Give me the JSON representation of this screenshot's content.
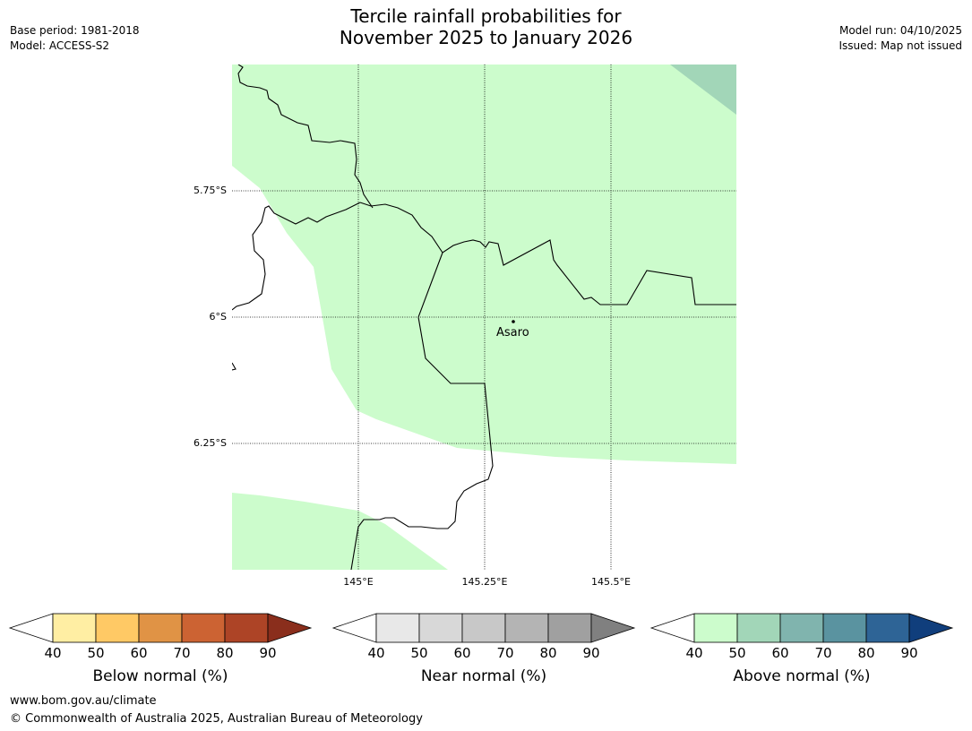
{
  "title": {
    "line1": "Tercile rainfall probabilities for",
    "line2": "November 2025 to January 2026"
  },
  "meta": {
    "base_period": "Base period: 1981-2018",
    "model": "Model: ACCESS-S2",
    "model_run": "Model run: 04/10/2025",
    "issued": "Issued: Map not issued"
  },
  "map": {
    "lat_labels": [
      "5.75°S",
      "6°S",
      "6.25°S"
    ],
    "lon_labels": [
      "145°E",
      "145.25°E",
      "145.5°E"
    ],
    "place": {
      "name": "Asaro",
      "icon": "dot-icon"
    },
    "colors": {
      "above_40_50": "#ccfccc",
      "above_50_60": "#a2d6b8",
      "border": "#000000"
    }
  },
  "colorbars": [
    {
      "label": "Below normal (%)",
      "ticks": [
        "40",
        "50",
        "60",
        "70",
        "80",
        "90"
      ],
      "colors": [
        "#ffeea3",
        "#ffc965",
        "#e09345",
        "#cc6333",
        "#ad4426",
        "#8a2e1c"
      ]
    },
    {
      "label": "Near normal (%)",
      "ticks": [
        "40",
        "50",
        "60",
        "70",
        "80",
        "90"
      ],
      "colors": [
        "#e8e8e8",
        "#d8d8d8",
        "#c8c8c8",
        "#b4b4b4",
        "#a0a0a0",
        "#808080"
      ]
    },
    {
      "label": "Above normal (%)",
      "ticks": [
        "40",
        "50",
        "60",
        "70",
        "80",
        "90"
      ],
      "colors": [
        "#ccfccc",
        "#a2d6b8",
        "#80b4ae",
        "#5a93a0",
        "#2e6496",
        "#103e7c"
      ]
    }
  ],
  "footer": {
    "url": "www.bom.gov.au/climate",
    "copyright": "© Commonwealth of Australia 2025, Australian Bureau of Meteorology"
  }
}
